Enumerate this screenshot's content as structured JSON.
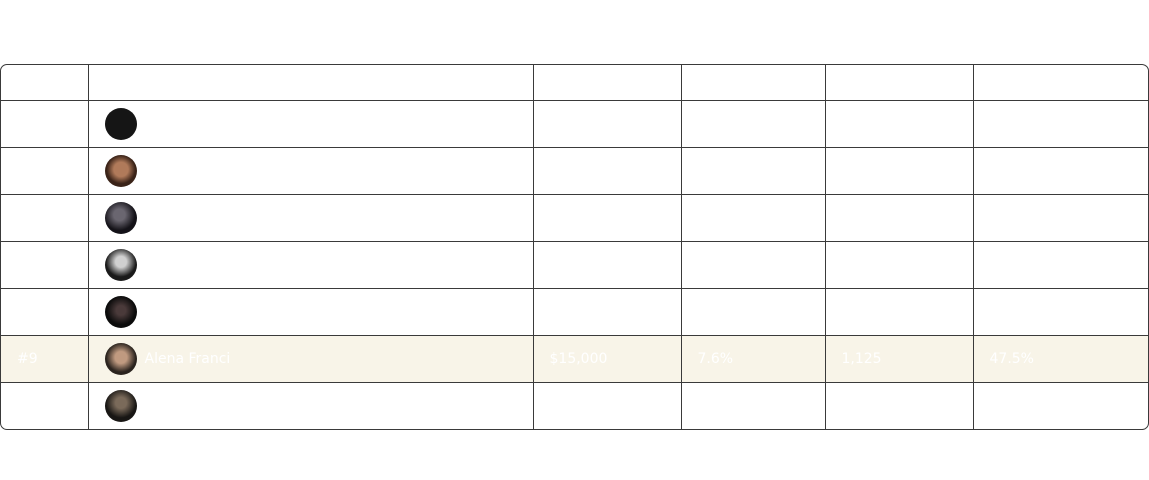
{
  "table": {
    "rows": [
      [],
      [],
      [],
      [],
      [],
      [
        "#9",
        "Alena Franci",
        "$15,000",
        "7.6%",
        "1,125",
        "47.5%"
      ],
      []
    ]
  }
}
